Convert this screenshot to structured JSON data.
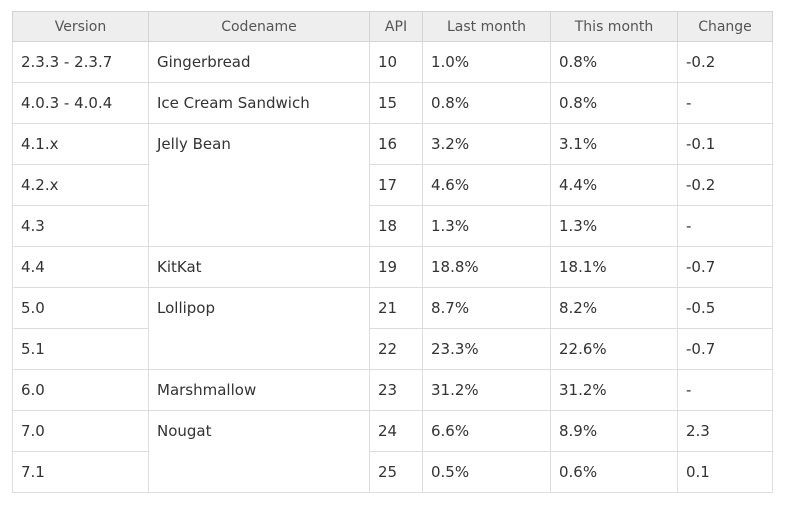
{
  "table": {
    "headers": [
      "Version",
      "Codename",
      "API",
      "Last month",
      "This month",
      "Change"
    ],
    "rows": [
      {
        "version": "2.3.3 - 2.3.7",
        "codename": "Gingerbread",
        "api": "10",
        "last": "1.0%",
        "this": "0.8%",
        "change": "-0.2"
      },
      {
        "version": "4.0.3 - 4.0.4",
        "codename": "Ice Cream Sandwich",
        "api": "15",
        "last": "0.8%",
        "this": "0.8%",
        "change": "-"
      },
      {
        "version": "4.1.x",
        "codename": "Jelly Bean",
        "api": "16",
        "last": "3.2%",
        "this": "3.1%",
        "change": "-0.1"
      },
      {
        "version": "4.2.x",
        "api": "17",
        "last": "4.6%",
        "this": "4.4%",
        "change": "-0.2"
      },
      {
        "version": "4.3",
        "api": "18",
        "last": "1.3%",
        "this": "1.3%",
        "change": "-"
      },
      {
        "version": "4.4",
        "codename": "KitKat",
        "api": "19",
        "last": "18.8%",
        "this": "18.1%",
        "change": "-0.7"
      },
      {
        "version": "5.0",
        "codename": "Lollipop",
        "api": "21",
        "last": "8.7%",
        "this": "8.2%",
        "change": "-0.5"
      },
      {
        "version": "5.1",
        "api": "22",
        "last": "23.3%",
        "this": "22.6%",
        "change": "-0.7"
      },
      {
        "version": "6.0",
        "codename": "Marshmallow",
        "api": "23",
        "last": "31.2%",
        "this": "31.2%",
        "change": "-"
      },
      {
        "version": "7.0",
        "codename": "Nougat",
        "api": "24",
        "last": "6.6%",
        "this": "8.9%",
        "change": "2.3"
      },
      {
        "version": "7.1",
        "api": "25",
        "last": "0.5%",
        "this": "0.6%",
        "change": "0.1"
      }
    ]
  }
}
